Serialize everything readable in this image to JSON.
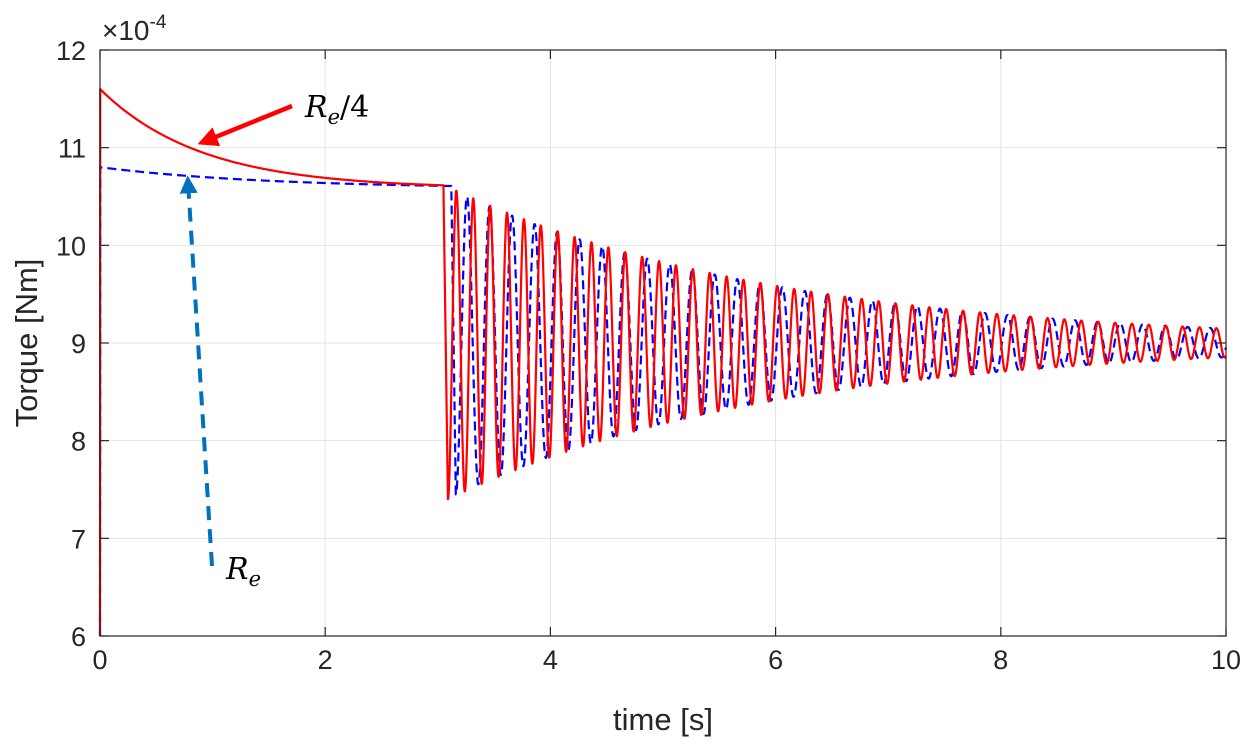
{
  "chart_data": {
    "type": "line",
    "xlabel": "time [s]",
    "ylabel": "Torque [Nm]",
    "xlim": [
      0,
      10
    ],
    "ylim": [
      6,
      12
    ],
    "y_multiplier": "×10",
    "y_multiplier_exponent": "-4",
    "xticks": [
      "0",
      "2",
      "4",
      "6",
      "8",
      "10"
    ],
    "yticks": [
      "6",
      "7",
      "8",
      "9",
      "10",
      "11",
      "12"
    ],
    "grid": true,
    "legend": "none",
    "series": [
      {
        "label_base": "R",
        "label_sub": "e",
        "color": "#0000ff",
        "style": "dashed",
        "initial_value": 10.8,
        "plateau_value": 10.58,
        "settle_tau": 1.5,
        "drop_time": 3.12,
        "first_min": 7.45,
        "final_value": 9.0,
        "oscillation_period": 0.2,
        "decay_tau": 2.9,
        "end_amplitude": 0.13,
        "points": [
          [
            0,
            6.0
          ],
          [
            0.002,
            10.8
          ],
          [
            0.5,
            10.72
          ],
          [
            1.0,
            10.67
          ],
          [
            1.5,
            10.63
          ],
          [
            2.0,
            10.61
          ],
          [
            2.5,
            10.59
          ],
          [
            3.12,
            10.58
          ],
          [
            3.16,
            7.45
          ],
          [
            4.0,
            8.0
          ],
          [
            5.0,
            8.4
          ],
          [
            6.0,
            8.6
          ],
          [
            7.0,
            8.72
          ],
          [
            8.0,
            8.82
          ],
          [
            9.0,
            8.86
          ],
          [
            10.0,
            9.12
          ]
        ]
      },
      {
        "label_base": "R",
        "label_sub": "e",
        "label_suffix": "/4",
        "color": "#ff0000",
        "style": "solid",
        "initial_value": 11.6,
        "plateau_value": 10.58,
        "settle_tau": 0.9,
        "drop_time": 3.05,
        "first_min": 7.4,
        "final_value": 9.0,
        "oscillation_period": 0.15,
        "decay_tau": 2.9,
        "end_amplitude": 0.12,
        "points": [
          [
            0,
            6.0
          ],
          [
            0.002,
            11.6
          ],
          [
            0.5,
            11.2
          ],
          [
            1.0,
            10.95
          ],
          [
            1.5,
            10.8
          ],
          [
            2.0,
            10.7
          ],
          [
            2.5,
            10.62
          ],
          [
            3.05,
            10.58
          ],
          [
            3.09,
            7.4
          ],
          [
            4.0,
            8.05
          ],
          [
            5.0,
            8.42
          ],
          [
            6.0,
            8.62
          ],
          [
            7.0,
            8.75
          ],
          [
            8.0,
            8.84
          ],
          [
            9.0,
            8.88
          ],
          [
            10.0,
            8.9
          ]
        ]
      }
    ],
    "annotations": [
      {
        "base": "R",
        "sub": "e",
        "suffix": "/4",
        "arrow_color": "#ff0000",
        "arrow_style": "solid",
        "points_to": [
          0.9,
          11.05
        ]
      },
      {
        "base": "R",
        "sub": "e",
        "suffix": "",
        "arrow_color": "#0072bd",
        "arrow_style": "dashed",
        "points_to": [
          0.78,
          10.68
        ]
      }
    ]
  }
}
